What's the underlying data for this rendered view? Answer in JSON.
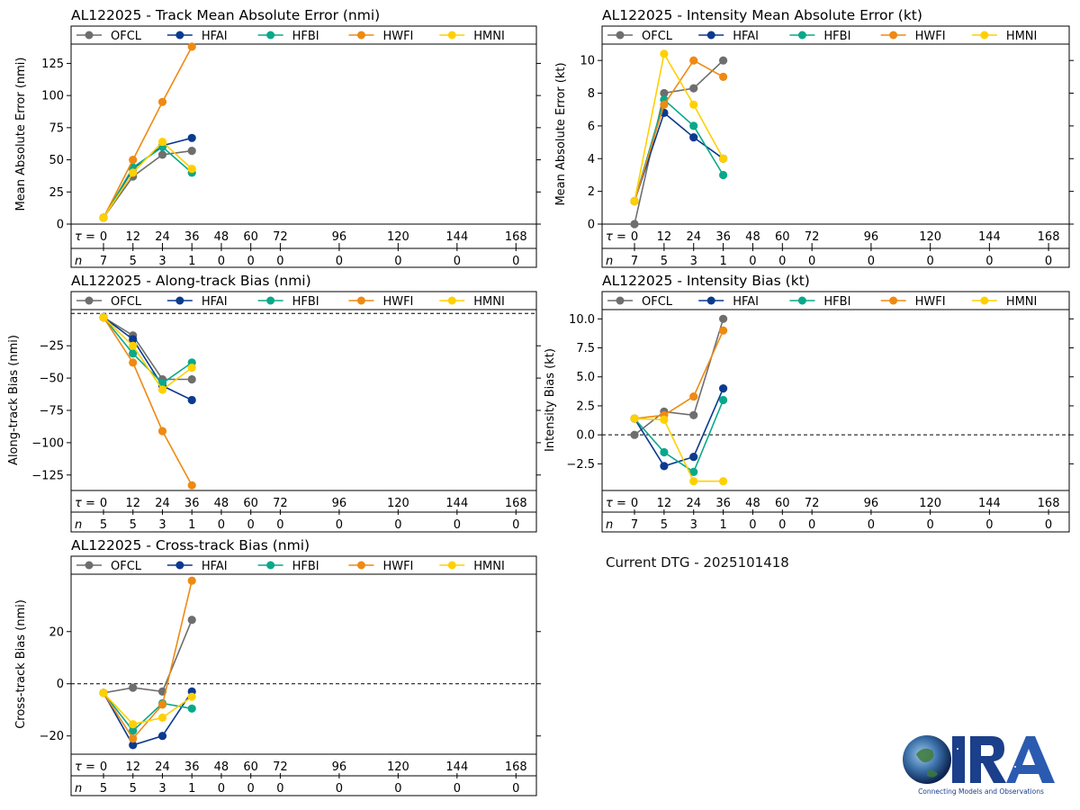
{
  "colors": {
    "OFCL": "#6e6e6e",
    "HFAI": "#0b3a8f",
    "HFBI": "#0aa88a",
    "HWFI": "#ee8a12",
    "HMNI": "#ffd000"
  },
  "legend": [
    "OFCL",
    "HFAI",
    "HFBI",
    "HWFI",
    "HMNI"
  ],
  "tau_label": "τ =",
  "n_label": "n",
  "tau_ticks": [
    0,
    12,
    24,
    36,
    48,
    60,
    72,
    96,
    120,
    144,
    168
  ],
  "dtg_text": "Current DTG - 2025101418",
  "logo": {
    "name": "CIRA",
    "tagline": "Connecting Models and Observations"
  },
  "chart_data": [
    {
      "id": "track_mae",
      "type": "line",
      "title": "AL122025 - Track Mean Absolute Error (nmi)",
      "ylabel": "Mean Absolute Error (nmi)",
      "ylim": [
        0,
        140
      ],
      "yticks": [
        0,
        25,
        50,
        75,
        100,
        125
      ],
      "ytick_labels": [
        "0",
        "25",
        "50",
        "75",
        "100",
        "125"
      ],
      "zero_line": false,
      "n_values": [
        7,
        5,
        3,
        1,
        0,
        0,
        0,
        0,
        0,
        0,
        0
      ],
      "x": [
        0,
        12,
        24,
        36
      ],
      "series": [
        {
          "name": "OFCL",
          "values": [
            5,
            37,
            54,
            57
          ]
        },
        {
          "name": "HFAI",
          "values": [
            5,
            43,
            61,
            67
          ]
        },
        {
          "name": "HFBI",
          "values": [
            5,
            44,
            60,
            40
          ]
        },
        {
          "name": "HWFI",
          "values": [
            5,
            50,
            95,
            138
          ]
        },
        {
          "name": "HMNI",
          "values": [
            5,
            40,
            64,
            43
          ]
        }
      ]
    },
    {
      "id": "intensity_mae",
      "type": "line",
      "title": "AL122025 - Intensity Mean Absolute Error (kt)",
      "ylabel": "Mean Absolute Error (kt)",
      "ylim": [
        0,
        11
      ],
      "yticks": [
        0,
        2,
        4,
        6,
        8,
        10
      ],
      "ytick_labels": [
        "0",
        "2",
        "4",
        "6",
        "8",
        "10"
      ],
      "zero_line": false,
      "n_values": [
        7,
        5,
        3,
        1,
        0,
        0,
        0,
        0,
        0,
        0,
        0
      ],
      "x": [
        0,
        12,
        24,
        36
      ],
      "series": [
        {
          "name": "OFCL",
          "values": [
            0,
            8,
            8.3,
            10
          ]
        },
        {
          "name": "HFAI",
          "values": [
            1.4,
            6.8,
            5.3,
            4
          ]
        },
        {
          "name": "HFBI",
          "values": [
            1.4,
            7.6,
            6,
            3
          ]
        },
        {
          "name": "HWFI",
          "values": [
            1.4,
            7.3,
            10,
            9
          ]
        },
        {
          "name": "HMNI",
          "values": [
            1.4,
            10.4,
            7.3,
            4
          ]
        }
      ]
    },
    {
      "id": "along_track_bias",
      "type": "line",
      "title": "AL122025 - Along-track Bias (nmi)",
      "ylabel": "Along-track Bias (nmi)",
      "ylim": [
        -137,
        3
      ],
      "yticks": [
        -125,
        -100,
        -75,
        -50,
        -25
      ],
      "ytick_labels": [
        "−125",
        "−100",
        "−75",
        "−50",
        "−25"
      ],
      "zero_line": true,
      "n_values": [
        5,
        5,
        3,
        1,
        0,
        0,
        0,
        0,
        0,
        0,
        0
      ],
      "x": [
        0,
        12,
        24,
        36
      ],
      "series": [
        {
          "name": "OFCL",
          "values": [
            -3,
            -17,
            -51,
            -51
          ]
        },
        {
          "name": "HFAI",
          "values": [
            -3,
            -20,
            -56,
            -67
          ]
        },
        {
          "name": "HFBI",
          "values": [
            -3,
            -31,
            -54,
            -38
          ]
        },
        {
          "name": "HWFI",
          "values": [
            -3,
            -38,
            -91,
            -133
          ]
        },
        {
          "name": "HMNI",
          "values": [
            -3,
            -25,
            -59,
            -42
          ]
        }
      ]
    },
    {
      "id": "intensity_bias",
      "type": "line",
      "title": "AL122025 - Intensity Bias (kt)",
      "ylabel": "Intensity Bias (kt)",
      "ylim": [
        -4.8,
        10.8
      ],
      "yticks": [
        -2.5,
        0,
        2.5,
        5,
        7.5,
        10
      ],
      "ytick_labels": [
        "−2.5",
        "0.0",
        "2.5",
        "5.0",
        "7.5",
        "10.0"
      ],
      "zero_line": true,
      "n_values": [
        7,
        5,
        3,
        1,
        0,
        0,
        0,
        0,
        0,
        0,
        0
      ],
      "x": [
        0,
        12,
        24,
        36
      ],
      "series": [
        {
          "name": "OFCL",
          "values": [
            0,
            2,
            1.7,
            10
          ]
        },
        {
          "name": "HFAI",
          "values": [
            1.4,
            -2.7,
            -1.9,
            4
          ]
        },
        {
          "name": "HFBI",
          "values": [
            1.4,
            -1.5,
            -3.2,
            3
          ]
        },
        {
          "name": "HWFI",
          "values": [
            1.4,
            1.7,
            3.3,
            9
          ]
        },
        {
          "name": "HMNI",
          "values": [
            1.4,
            1.3,
            -4,
            -4
          ]
        }
      ]
    },
    {
      "id": "cross_track_bias",
      "type": "line",
      "title": "AL122025 - Cross-track Bias (nmi)",
      "ylabel": "Cross-track Bias (nmi)",
      "ylim": [
        -27,
        42
      ],
      "yticks": [
        -20,
        0,
        20
      ],
      "ytick_labels": [
        "−20",
        "0",
        "20"
      ],
      "zero_line": true,
      "n_values": [
        5,
        5,
        3,
        1,
        0,
        0,
        0,
        0,
        0,
        0,
        0
      ],
      "x": [
        0,
        12,
        24,
        36
      ],
      "series": [
        {
          "name": "OFCL",
          "values": [
            -3.5,
            -1.5,
            -3,
            24.5
          ]
        },
        {
          "name": "HFAI",
          "values": [
            -3.5,
            -23.5,
            -20,
            -3
          ]
        },
        {
          "name": "HFBI",
          "values": [
            -3.5,
            -18,
            -7.5,
            -9.5
          ]
        },
        {
          "name": "HWFI",
          "values": [
            -3.5,
            -21,
            -8,
            39.5
          ]
        },
        {
          "name": "HMNI",
          "values": [
            -3.5,
            -15.5,
            -13,
            -5
          ]
        }
      ]
    }
  ]
}
